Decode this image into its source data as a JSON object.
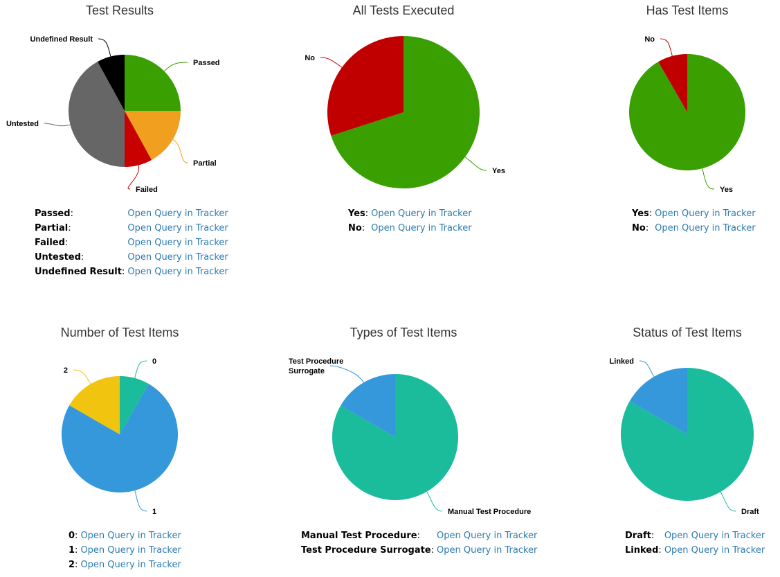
{
  "charts": [
    {
      "title": "Test Results",
      "link_text": "Open Query in Tracker",
      "chart_data": {
        "type": "pie",
        "title": "Test Results",
        "categories": [
          "Passed",
          "Partial",
          "Failed",
          "Untested",
          "Undefined Result"
        ],
        "values": [
          25,
          17,
          8,
          42,
          8
        ],
        "colors": [
          "#3a9f00",
          "#f0a01e",
          "#c80000",
          "#666666",
          "#000000"
        ]
      }
    },
    {
      "title": "All Tests Executed",
      "link_text": "Open Query in Tracker",
      "chart_data": {
        "type": "pie",
        "title": "All Tests Executed",
        "categories": [
          "Yes",
          "No"
        ],
        "values": [
          70,
          30
        ],
        "colors": [
          "#3a9f00",
          "#c00000"
        ]
      }
    },
    {
      "title": "Has Test Items",
      "link_text": "Open Query in Tracker",
      "chart_data": {
        "type": "pie",
        "title": "Has Test Items",
        "categories": [
          "Yes",
          "No"
        ],
        "values": [
          91.7,
          8.3
        ],
        "colors": [
          "#3a9f00",
          "#c00000"
        ]
      }
    },
    {
      "title": "Number of Test Items",
      "link_text": "Open Query in Tracker",
      "chart_data": {
        "type": "pie",
        "title": "Number of Test Items",
        "categories": [
          "0",
          "1",
          "2"
        ],
        "values": [
          8.3,
          75,
          16.7
        ],
        "colors": [
          "#1abc9c",
          "#3498db",
          "#f1c40f"
        ]
      }
    },
    {
      "title": "Types of Test Items",
      "link_text": "Open Query in Tracker",
      "chart_data": {
        "type": "pie",
        "title": "Types of Test Items",
        "categories": [
          "Manual Test Procedure",
          "Test Procedure Surrogate"
        ],
        "values": [
          83.3,
          16.7
        ],
        "colors": [
          "#1abc9c",
          "#3498db"
        ]
      }
    },
    {
      "title": "Status of Test Items",
      "link_text": "Open Query in Tracker",
      "chart_data": {
        "type": "pie",
        "title": "Status of Test Items",
        "categories": [
          "Draft",
          "Linked"
        ],
        "values": [
          83.3,
          16.7
        ],
        "colors": [
          "#1abc9c",
          "#3498db"
        ]
      }
    }
  ]
}
